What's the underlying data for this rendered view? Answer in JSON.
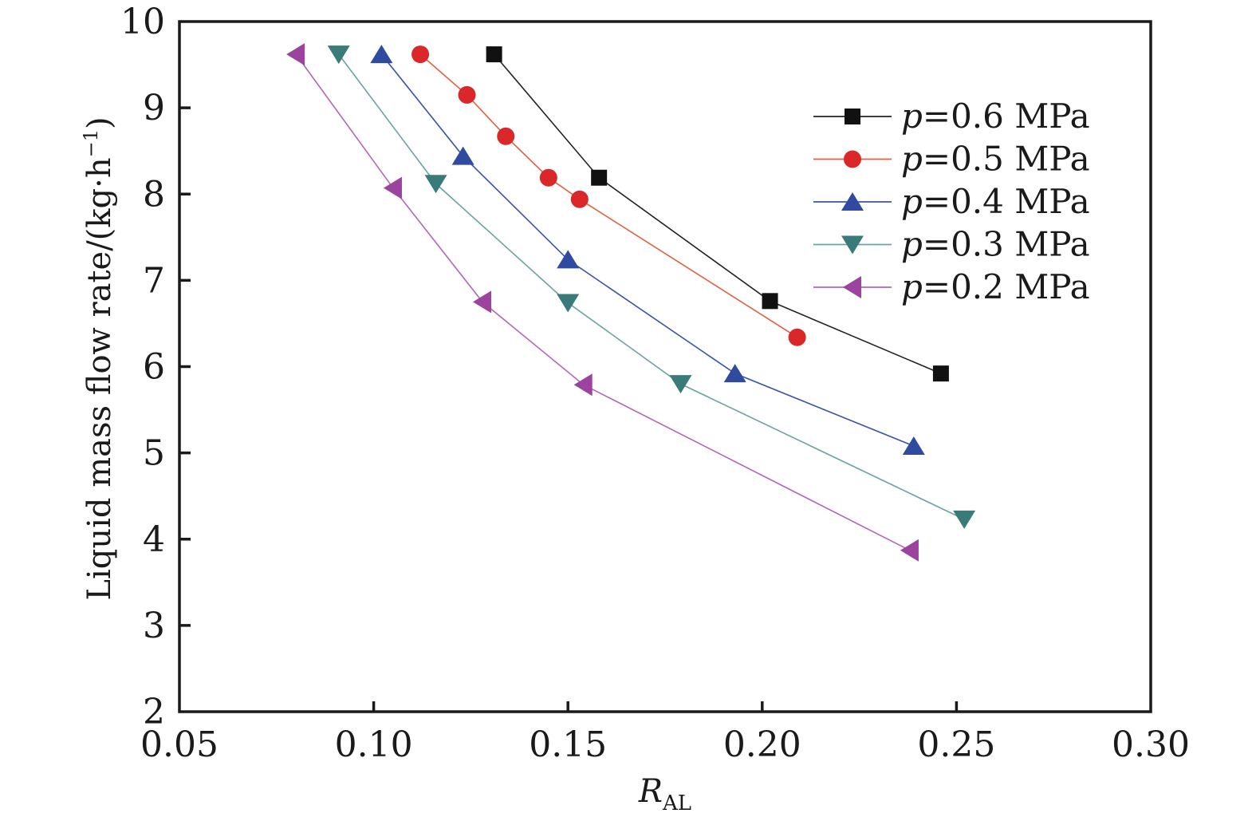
{
  "chart_data": {
    "type": "line",
    "title": "",
    "xlabel": "R",
    "xlabel_subscript": "AL",
    "ylabel": "Liquid mass flow rate/(kg·h",
    "ylabel_superscript": "−1",
    "ylabel_close": ")",
    "xlim": [
      0.05,
      0.3
    ],
    "ylim": [
      2,
      10
    ],
    "xticks": [
      0.05,
      0.1,
      0.15,
      0.2,
      0.25,
      0.3
    ],
    "xtick_labels": [
      "0.05",
      "0.10",
      "0.15",
      "0.20",
      "0.25",
      "0.30"
    ],
    "yticks": [
      2,
      3,
      4,
      5,
      6,
      7,
      8,
      9,
      10
    ],
    "ytick_labels": [
      "2",
      "3",
      "4",
      "5",
      "6",
      "7",
      "8",
      "9",
      "10"
    ],
    "grid": false,
    "legend_position": "top-right",
    "series": [
      {
        "name": "p=0.6 MPa",
        "label_var": "p",
        "label_rest": "=0.6 MPa",
        "marker": "square",
        "color": "#111111",
        "line_color": "#222222",
        "x": [
          0.131,
          0.158,
          0.202,
          0.246
        ],
        "y": [
          9.62,
          8.19,
          6.76,
          5.92
        ]
      },
      {
        "name": "p=0.5 MPa",
        "label_var": "p",
        "label_rest": "=0.5 MPa",
        "marker": "circle",
        "color": "#d9272a",
        "line_color": "#e0603f",
        "x": [
          0.112,
          0.124,
          0.134,
          0.145,
          0.153,
          0.209
        ],
        "y": [
          9.62,
          9.15,
          8.67,
          8.19,
          7.94,
          6.34
        ]
      },
      {
        "name": "p=0.4 MPa",
        "label_var": "p",
        "label_rest": "=0.4 MPa",
        "marker": "triangle-up",
        "color": "#2f4a9e",
        "line_color": "#3a52a8",
        "x": [
          0.102,
          0.123,
          0.15,
          0.193,
          0.239
        ],
        "y": [
          9.62,
          8.44,
          7.24,
          5.92,
          5.08
        ]
      },
      {
        "name": "p=0.3 MPa",
        "label_var": "p",
        "label_rest": "=0.3 MPa",
        "marker": "triangle-down",
        "color": "#3a7a78",
        "line_color": "#6aa3a0",
        "x": [
          0.091,
          0.116,
          0.15,
          0.179,
          0.252
        ],
        "y": [
          9.62,
          8.12,
          6.74,
          5.8,
          4.23
        ]
      },
      {
        "name": "p=0.2 MPa",
        "label_var": "p",
        "label_rest": "=0.2 MPa",
        "marker": "triangle-left",
        "color": "#9a449e",
        "line_color": "#b266b8",
        "x": [
          0.08,
          0.105,
          0.128,
          0.154,
          0.238
        ],
        "y": [
          9.62,
          8.07,
          6.75,
          5.79,
          3.87
        ]
      }
    ]
  }
}
